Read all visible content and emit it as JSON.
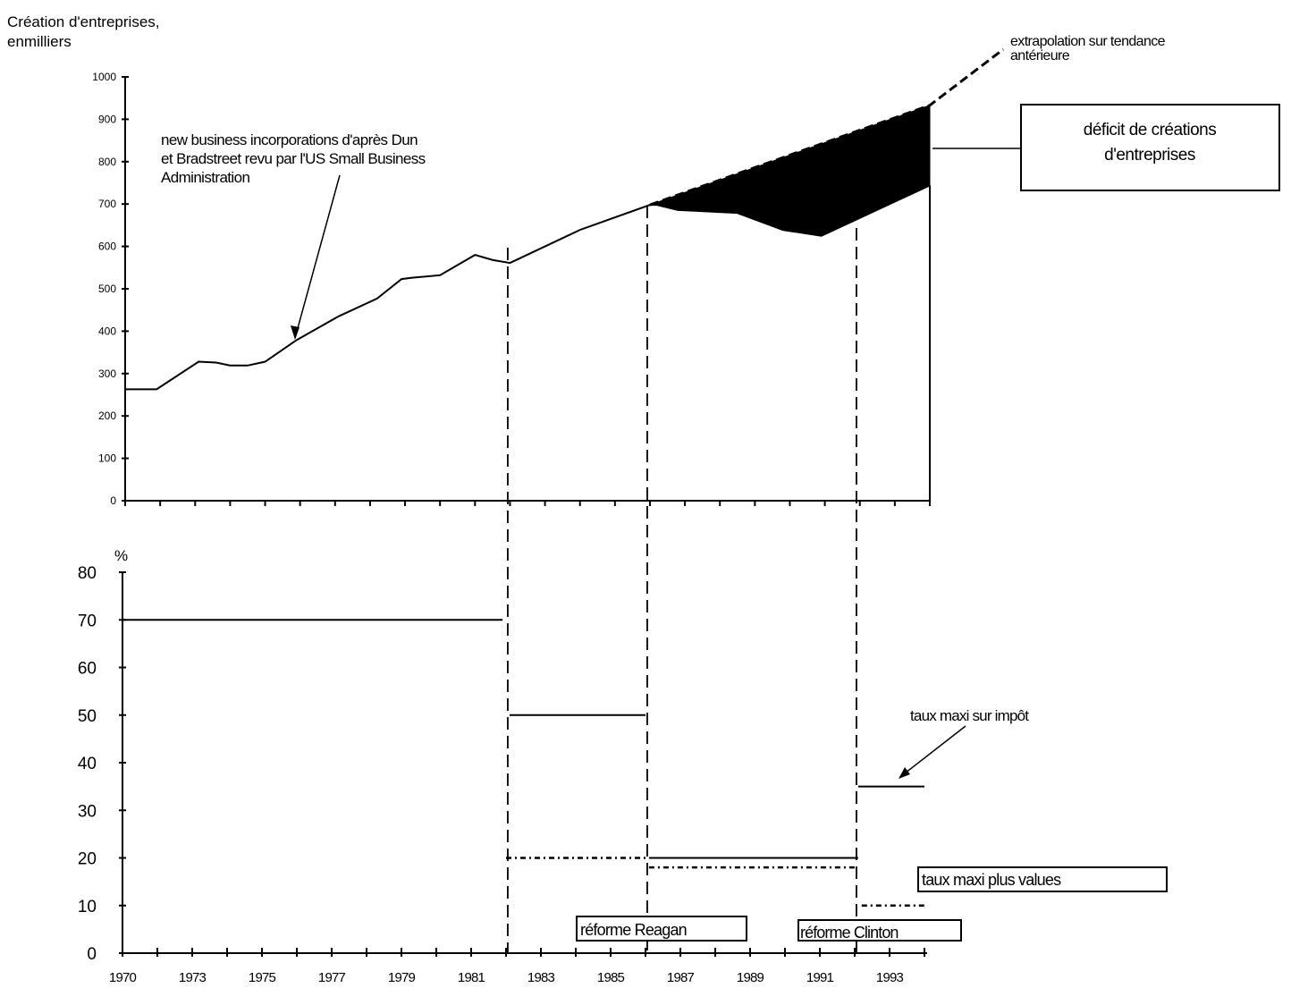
{
  "chart_data": [
    {
      "type": "area",
      "title": "Création d'entreprises, en milliers",
      "title_lines": [
        "Création d'entreprises,",
        "enmilliers"
      ],
      "xlim": [
        1970,
        1993
      ],
      "ylim": [
        0,
        1000
      ],
      "yticks": [
        0,
        100,
        200,
        300,
        400,
        500,
        600,
        700,
        800,
        900,
        1000
      ],
      "grid": false,
      "series": [
        {
          "name": "new business incorporations d'après Dun et Bradstreet revu par l'US Small Business Administration",
          "style": "solid",
          "points": [
            [
              1970,
              263
            ],
            [
              1970.9,
              263
            ],
            [
              1972.1,
              328
            ],
            [
              1972.6,
              326
            ],
            [
              1973,
              319
            ],
            [
              1973.5,
              319
            ],
            [
              1974,
              328
            ],
            [
              1974.9,
              379
            ],
            [
              1976.1,
              435
            ],
            [
              1977.2,
              477
            ],
            [
              1977.9,
              523
            ],
            [
              1978.2,
              526
            ],
            [
              1979,
              532
            ],
            [
              1980,
              580
            ],
            [
              1980.5,
              568
            ],
            [
              1981,
              561
            ],
            [
              1983,
              639
            ],
            [
              1985,
              698
            ],
            [
              1985.2,
              698
            ],
            [
              1985.8,
              686
            ],
            [
              1987.5,
              679
            ],
            [
              1988.8,
              639
            ],
            [
              1989.9,
              625
            ],
            [
              1993,
              744
            ]
          ]
        },
        {
          "name": "extrapolation sur tendance antérieure",
          "style": "dashed",
          "points": [
            [
              1985,
              698
            ],
            [
              1993,
              933
            ],
            [
              1995.1,
              1065
            ]
          ]
        }
      ],
      "deficit_fill": {
        "from": 1985,
        "to": 1993,
        "color": "#000000"
      },
      "annotations": {
        "source_lines": [
          "new business incorporations d'après Dun",
          "et Bradstreet revu par l'US Small Business",
          "Administration"
        ],
        "extrapolation_lines": [
          "extrapolation sur tendance",
          "antérieure"
        ],
        "deficit_lines": [
          "déficit de créations",
          "d'entreprises"
        ]
      }
    },
    {
      "type": "line",
      "ylabel": "%",
      "xlim": [
        1970,
        1993
      ],
      "ylim": [
        0,
        80
      ],
      "yticks": [
        0,
        10,
        20,
        30,
        40,
        50,
        60,
        70,
        80
      ],
      "xtick_labels": [
        "1970",
        "1973",
        "1975",
        "1977",
        "1979",
        "1981",
        "1983",
        "1985",
        "1987",
        "1989",
        "1991",
        "1993"
      ],
      "grid": false,
      "series": [
        {
          "name": "taux maxi sur impôt",
          "style": "solid",
          "segments": [
            [
              1970,
              1980.9,
              70
            ],
            [
              1981.1,
              1985,
              50
            ],
            [
              1985.1,
              1991.1,
              20
            ],
            [
              1991.1,
              1993,
              35
            ]
          ]
        },
        {
          "name": "taux maxi plus values",
          "style": "dotted",
          "segments": [
            [
              1981,
              1985,
              20
            ],
            [
              1985.1,
              1991.1,
              18
            ],
            [
              1991.2,
              1993,
              10
            ]
          ]
        }
      ],
      "events": [
        {
          "year": 1981.05,
          "label": ""
        },
        {
          "year": 1985.05,
          "label": "réforme  Reagan"
        },
        {
          "year": 1991.05,
          "label": "réforme Clinton"
        }
      ]
    }
  ]
}
